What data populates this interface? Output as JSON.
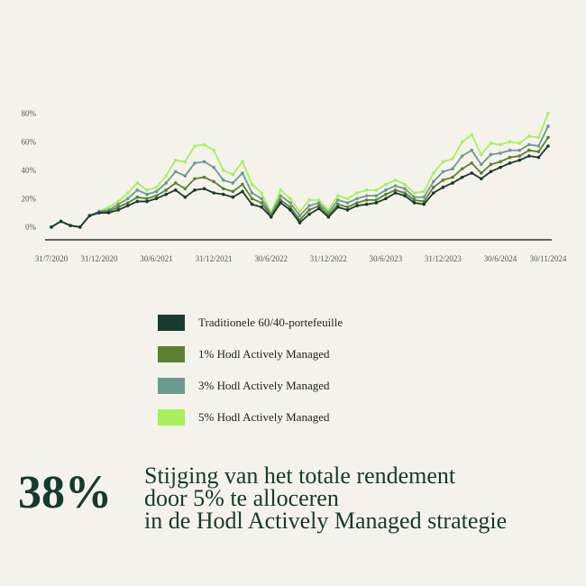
{
  "chart_data": {
    "type": "line",
    "categories": [
      "31/7/2020",
      null,
      null,
      null,
      null,
      "31/12/2020",
      null,
      null,
      null,
      null,
      null,
      "30/6/2021",
      null,
      null,
      null,
      null,
      null,
      "31/12/2021",
      null,
      null,
      null,
      null,
      null,
      "30/6/2022",
      null,
      null,
      null,
      null,
      null,
      "31/12/2022",
      null,
      null,
      null,
      null,
      null,
      "30/6/2023",
      null,
      null,
      null,
      null,
      null,
      "31/12/2023",
      null,
      null,
      null,
      null,
      null,
      "30/6/2024",
      null,
      null,
      null,
      null,
      "30/11/2024"
    ],
    "series": [
      {
        "name": "Traditionele 60/40-portefeuille",
        "color": "#1b3a2f",
        "values": [
          0,
          4,
          1,
          0,
          8,
          10,
          10,
          12,
          15,
          18,
          18,
          20,
          23,
          26,
          21,
          26,
          27,
          24,
          23,
          21,
          25,
          16,
          14,
          7,
          17,
          12,
          3,
          9,
          13,
          7,
          14,
          12,
          15,
          16,
          17,
          20,
          24,
          22,
          17,
          16,
          24,
          28,
          31,
          35,
          38,
          34,
          39,
          42,
          45,
          47,
          50,
          49,
          57
        ]
      },
      {
        "name": "1% Hodl Actively Managed",
        "color": "#5b8130",
        "values": [
          0,
          4,
          1,
          0,
          8,
          10,
          11,
          14,
          17,
          21,
          20,
          22,
          26,
          31,
          27,
          34,
          35,
          32,
          27,
          25,
          30,
          20,
          17,
          8,
          19,
          14,
          5,
          12,
          15,
          8,
          16,
          14,
          17,
          19,
          19,
          23,
          26,
          24,
          19,
          18,
          28,
          33,
          35,
          41,
          45,
          38,
          44,
          46,
          49,
          50,
          54,
          53,
          63
        ]
      },
      {
        "name": "3% Hodl Actively Managed",
        "color": "#6b9b8f",
        "values": [
          0,
          4,
          1,
          0,
          8,
          11,
          12,
          16,
          20,
          26,
          23,
          25,
          31,
          39,
          36,
          45,
          46,
          42,
          33,
          31,
          38,
          24,
          20,
          9,
          22,
          17,
          8,
          15,
          17,
          10,
          19,
          17,
          20,
          22,
          22,
          26,
          29,
          27,
          21,
          21,
          32,
          39,
          41,
          50,
          54,
          44,
          51,
          52,
          54,
          54,
          58,
          57,
          71
        ]
      },
      {
        "name": "5% Hodl Actively Managed",
        "color": "#a8ef5c",
        "values": [
          0,
          4,
          1,
          0,
          8,
          11,
          14,
          18,
          24,
          31,
          26,
          28,
          36,
          47,
          46,
          57,
          58,
          54,
          40,
          37,
          46,
          30,
          24,
          10,
          26,
          20,
          11,
          19,
          19,
          12,
          22,
          20,
          24,
          26,
          26,
          30,
          33,
          30,
          24,
          25,
          38,
          46,
          48,
          60,
          65,
          51,
          59,
          58,
          60,
          59,
          64,
          63,
          80
        ]
      }
    ],
    "ylim": [
      -9,
      90
    ],
    "yticks": [
      {
        "value": 0,
        "label": "0%"
      },
      {
        "value": 20,
        "label": "20%"
      },
      {
        "value": 40,
        "label": "40%"
      },
      {
        "value": 60,
        "label": "60%"
      },
      {
        "value": 80,
        "label": "80%"
      }
    ]
  },
  "callout": {
    "figure": "38%",
    "lines": [
      "Stijging van het totale rendement",
      "door 5% te alloceren",
      "in de Hodl Actively Managed strategie"
    ]
  }
}
